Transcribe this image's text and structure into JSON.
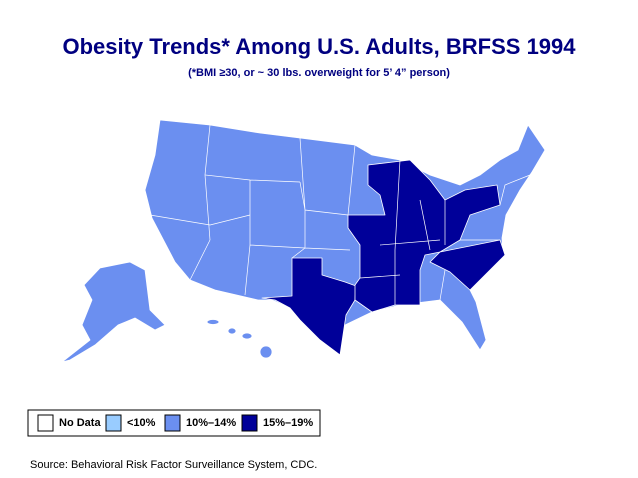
{
  "title": "Obesity Trends* Among U.S. Adults, BRFSS 1994",
  "subtitle": "(*BMI ≥30, or ~ 30 lbs. overweight for 5’ 4” person)",
  "legend": [
    {
      "label": "No Data",
      "color": "#ffffff"
    },
    {
      "label": "<10%",
      "color": "#99ccff"
    },
    {
      "label": "10%–14%",
      "color": "#6b8ff0"
    },
    {
      "label": "15%–19%",
      "color": "#000099"
    }
  ],
  "source": "Source: Behavioral Risk Factor Surveillance System, CDC."
}
